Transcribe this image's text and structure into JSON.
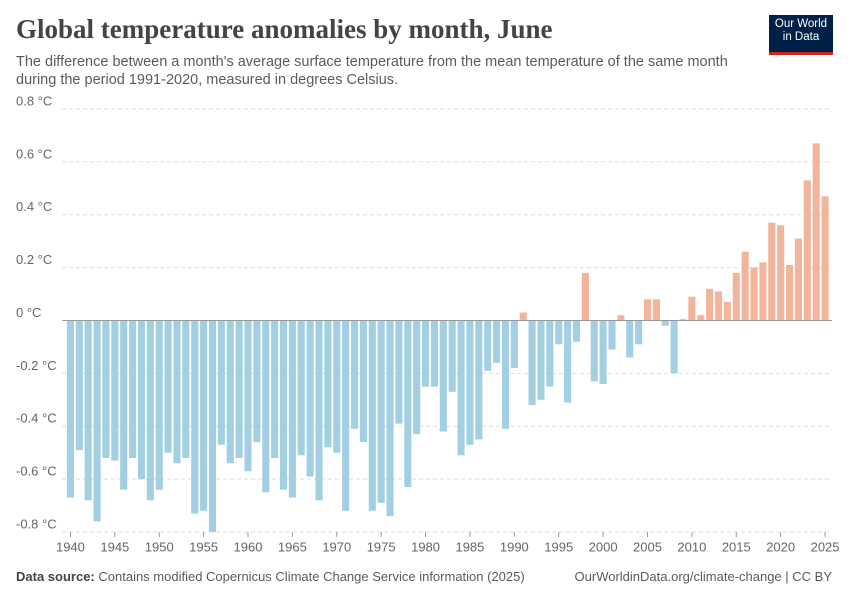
{
  "chart_data": {
    "type": "bar",
    "title": "Global temperature anomalies by month, June",
    "subtitle": "The difference between a month's average surface temperature from the mean temperature of the same month during the period 1991-2020, measured in degrees Celsius.",
    "logo": "Our World in Data",
    "source_label": "Data source:",
    "source": "Contains modified Copernicus Climate Change Service information (2025)",
    "credit": "OurWorldinData.org/climate-change | CC BY",
    "x": [
      1940,
      1941,
      1942,
      1943,
      1944,
      1945,
      1946,
      1947,
      1948,
      1949,
      1950,
      1951,
      1952,
      1953,
      1954,
      1955,
      1956,
      1957,
      1958,
      1959,
      1960,
      1961,
      1962,
      1963,
      1964,
      1965,
      1966,
      1967,
      1968,
      1969,
      1970,
      1971,
      1972,
      1973,
      1974,
      1975,
      1976,
      1977,
      1978,
      1979,
      1980,
      1981,
      1982,
      1983,
      1984,
      1985,
      1986,
      1987,
      1988,
      1989,
      1990,
      1991,
      1992,
      1993,
      1994,
      1995,
      1996,
      1997,
      1998,
      1999,
      2000,
      2001,
      2002,
      2003,
      2004,
      2005,
      2006,
      2007,
      2008,
      2009,
      2010,
      2011,
      2012,
      2013,
      2014,
      2015,
      2016,
      2017,
      2018,
      2019,
      2020,
      2021,
      2022,
      2023,
      2024,
      2025
    ],
    "values": [
      -0.67,
      -0.49,
      -0.68,
      -0.76,
      -0.52,
      -0.53,
      -0.64,
      -0.52,
      -0.6,
      -0.68,
      -0.64,
      -0.5,
      -0.54,
      -0.52,
      -0.73,
      -0.72,
      -0.8,
      -0.47,
      -0.54,
      -0.52,
      -0.57,
      -0.46,
      -0.65,
      -0.52,
      -0.64,
      -0.67,
      -0.51,
      -0.59,
      -0.68,
      -0.48,
      -0.5,
      -0.72,
      -0.41,
      -0.46,
      -0.72,
      -0.69,
      -0.74,
      -0.39,
      -0.63,
      -0.43,
      -0.25,
      -0.25,
      -0.42,
      -0.27,
      -0.51,
      -0.47,
      -0.45,
      -0.19,
      -0.16,
      -0.41,
      -0.18,
      0.03,
      -0.32,
      -0.3,
      -0.25,
      -0.09,
      -0.31,
      -0.08,
      0.18,
      -0.23,
      -0.24,
      -0.11,
      0.02,
      -0.14,
      -0.09,
      0.08,
      0.08,
      -0.02,
      -0.2,
      0.005,
      0.09,
      0.02,
      0.12,
      0.11,
      0.07,
      0.18,
      0.26,
      0.2,
      0.22,
      0.37,
      0.36,
      0.21,
      0.31,
      0.53,
      0.67,
      0.47
    ],
    "positive_color": "#f2b49b",
    "negative_color": "#a3cfe3",
    "xlim": [
      1939.5,
      2025.5
    ],
    "xticks": [
      1940,
      1945,
      1950,
      1955,
      1960,
      1965,
      1970,
      1975,
      1980,
      1985,
      1990,
      1995,
      2000,
      2005,
      2010,
      2015,
      2020,
      2025
    ],
    "ylim": [
      -0.8,
      0.8
    ],
    "yticks": [
      {
        "value": -0.8,
        "label": "-0.8 °C"
      },
      {
        "value": -0.6,
        "label": "-0.6 °C"
      },
      {
        "value": -0.4,
        "label": "-0.4 °C"
      },
      {
        "value": -0.2,
        "label": "-0.2 °C"
      },
      {
        "value": 0,
        "label": "0 °C"
      },
      {
        "value": 0.2,
        "label": "0.2 °C"
      },
      {
        "value": 0.4,
        "label": "0.4 °C"
      },
      {
        "value": 0.6,
        "label": "0.6 °C"
      },
      {
        "value": 0.8,
        "label": "0.8 °C"
      }
    ],
    "grid": true
  }
}
